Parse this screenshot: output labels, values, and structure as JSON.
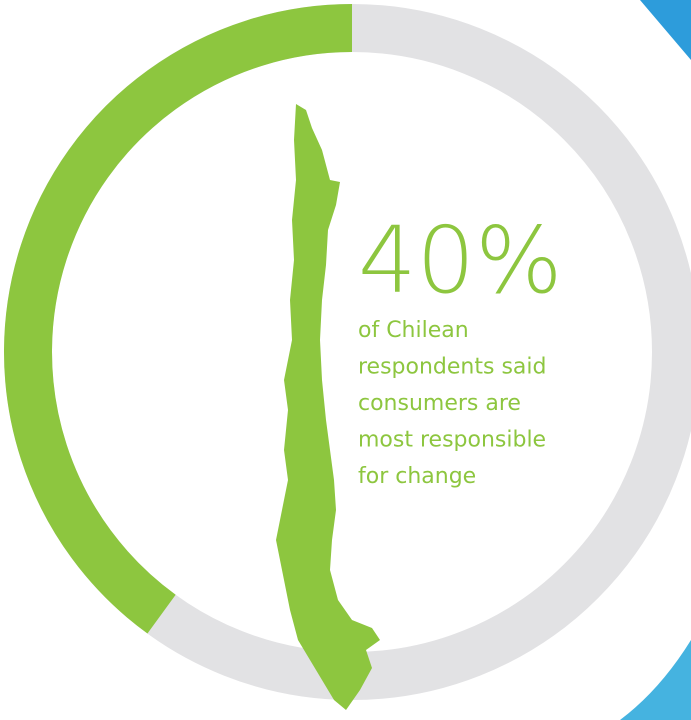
{
  "chart_data": {
    "type": "gauge",
    "values": [
      40
    ],
    "value_labels": [
      "40%"
    ],
    "range": [
      0,
      100
    ],
    "color": "#8dc63f",
    "track_color": "#e2e2e4",
    "annotation_lines": [
      "of Chilean",
      "respondents said",
      "consumers are",
      "most responsible",
      "for change"
    ]
  }
}
